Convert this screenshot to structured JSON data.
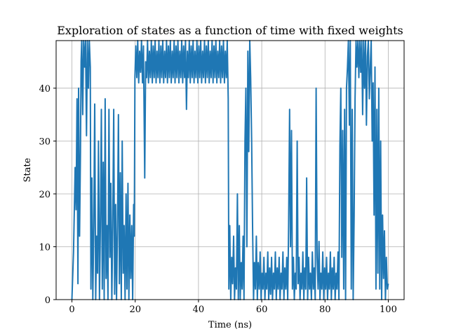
{
  "chart_data": {
    "type": "line",
    "title": "Exploration of states as a function of time with fixed weights",
    "xlabel": "Time (ns)",
    "ylabel": "State",
    "xlim": [
      -5,
      105
    ],
    "ylim": [
      0,
      49
    ],
    "xticks": [
      0,
      20,
      40,
      60,
      80,
      100
    ],
    "yticks": [
      0,
      10,
      20,
      30,
      40
    ],
    "grid": true,
    "series_color": "#1f77b4",
    "series": [
      {
        "values": [
          [
            0.0,
            0
          ],
          [
            0.5,
            9
          ],
          [
            1.0,
            25
          ],
          [
            1.3,
            17
          ],
          [
            1.6,
            38
          ],
          [
            1.9,
            3
          ],
          [
            2.1,
            40
          ],
          [
            2.4,
            12
          ],
          [
            2.7,
            28
          ],
          [
            2.9,
            45
          ],
          [
            3.1,
            49
          ],
          [
            3.4,
            35
          ],
          [
            3.7,
            49
          ],
          [
            4.0,
            44
          ],
          [
            4.3,
            49
          ],
          [
            4.6,
            31
          ],
          [
            4.9,
            49
          ],
          [
            5.2,
            40
          ],
          [
            5.5,
            49
          ],
          [
            5.8,
            44
          ],
          [
            6.0,
            2
          ],
          [
            6.3,
            23
          ],
          [
            6.6,
            0
          ],
          [
            6.9,
            14
          ],
          [
            7.2,
            37
          ],
          [
            7.5,
            0
          ],
          [
            7.8,
            12
          ],
          [
            8.1,
            5
          ],
          [
            8.4,
            30
          ],
          [
            8.7,
            0
          ],
          [
            9.0,
            14
          ],
          [
            9.3,
            36
          ],
          [
            9.6,
            2
          ],
          [
            9.9,
            26
          ],
          [
            10.2,
            0
          ],
          [
            10.5,
            38
          ],
          [
            10.8,
            4
          ],
          [
            11.1,
            14
          ],
          [
            11.4,
            0
          ],
          [
            11.7,
            36
          ],
          [
            12.0,
            8
          ],
          [
            12.3,
            22
          ],
          [
            12.6,
            0
          ],
          [
            12.9,
            14
          ],
          [
            13.2,
            36
          ],
          [
            13.5,
            1
          ],
          [
            13.8,
            18
          ],
          [
            14.1,
            0
          ],
          [
            14.4,
            14
          ],
          [
            14.7,
            35
          ],
          [
            15.0,
            3
          ],
          [
            15.3,
            24
          ],
          [
            15.6,
            0
          ],
          [
            15.9,
            30
          ],
          [
            16.2,
            5
          ],
          [
            16.5,
            14
          ],
          [
            16.8,
            0
          ],
          [
            17.1,
            20
          ],
          [
            17.4,
            2
          ],
          [
            17.7,
            22
          ],
          [
            18.0,
            0
          ],
          [
            18.3,
            16
          ],
          [
            18.6,
            4
          ],
          [
            18.9,
            14
          ],
          [
            19.2,
            0
          ],
          [
            19.5,
            18
          ],
          [
            19.7,
            12
          ],
          [
            19.9,
            42
          ],
          [
            20.2,
            48
          ],
          [
            20.5,
            42
          ],
          [
            20.8,
            49
          ],
          [
            21.1,
            41
          ],
          [
            21.4,
            47
          ],
          [
            21.7,
            43
          ],
          [
            22.0,
            49
          ],
          [
            22.3,
            41
          ],
          [
            22.6,
            48
          ],
          [
            23.0,
            23
          ],
          [
            23.3,
            45
          ],
          [
            23.6,
            42
          ],
          [
            23.9,
            49
          ],
          [
            24.2,
            41
          ],
          [
            24.5,
            47
          ],
          [
            24.8,
            42
          ],
          [
            25.1,
            49
          ],
          [
            25.4,
            41
          ],
          [
            25.7,
            48
          ],
          [
            26.0,
            42
          ],
          [
            26.3,
            49
          ],
          [
            26.6,
            41
          ],
          [
            26.9,
            47
          ],
          [
            27.2,
            42
          ],
          [
            27.5,
            49
          ],
          [
            27.8,
            41
          ],
          [
            28.1,
            48
          ],
          [
            28.4,
            42
          ],
          [
            28.7,
            49
          ],
          [
            29.0,
            41
          ],
          [
            29.3,
            47
          ],
          [
            29.6,
            42
          ],
          [
            29.9,
            49
          ],
          [
            30.2,
            41
          ],
          [
            30.5,
            48
          ],
          [
            30.8,
            42
          ],
          [
            31.1,
            49
          ],
          [
            31.4,
            41
          ],
          [
            31.7,
            47
          ],
          [
            32.0,
            42
          ],
          [
            32.3,
            49
          ],
          [
            32.6,
            41
          ],
          [
            32.9,
            48
          ],
          [
            33.2,
            42
          ],
          [
            33.5,
            49
          ],
          [
            33.8,
            41
          ],
          [
            34.1,
            47
          ],
          [
            34.4,
            42
          ],
          [
            34.7,
            49
          ],
          [
            35.0,
            41
          ],
          [
            35.3,
            48
          ],
          [
            35.6,
            42
          ],
          [
            35.9,
            49
          ],
          [
            36.2,
            36
          ],
          [
            36.5,
            47
          ],
          [
            36.8,
            42
          ],
          [
            37.1,
            49
          ],
          [
            37.4,
            41
          ],
          [
            37.7,
            48
          ],
          [
            38.0,
            42
          ],
          [
            38.3,
            49
          ],
          [
            38.6,
            41
          ],
          [
            38.9,
            47
          ],
          [
            39.2,
            42
          ],
          [
            39.5,
            49
          ],
          [
            39.8,
            41
          ],
          [
            40.1,
            48
          ],
          [
            40.4,
            42
          ],
          [
            40.7,
            49
          ],
          [
            41.0,
            41
          ],
          [
            41.3,
            47
          ],
          [
            41.6,
            42
          ],
          [
            41.9,
            49
          ],
          [
            42.2,
            41
          ],
          [
            42.5,
            48
          ],
          [
            42.8,
            42
          ],
          [
            43.1,
            49
          ],
          [
            43.4,
            41
          ],
          [
            43.7,
            47
          ],
          [
            44.0,
            42
          ],
          [
            44.3,
            49
          ],
          [
            44.6,
            41
          ],
          [
            44.9,
            48
          ],
          [
            45.2,
            42
          ],
          [
            45.5,
            49
          ],
          [
            45.8,
            41
          ],
          [
            46.1,
            47
          ],
          [
            46.4,
            42
          ],
          [
            46.7,
            49
          ],
          [
            47.0,
            41
          ],
          [
            47.3,
            48
          ],
          [
            47.6,
            42
          ],
          [
            47.9,
            49
          ],
          [
            48.2,
            41
          ],
          [
            48.5,
            47
          ],
          [
            48.8,
            42
          ],
          [
            49.1,
            49
          ],
          [
            49.4,
            38
          ],
          [
            49.6,
            2
          ],
          [
            49.9,
            14
          ],
          [
            50.2,
            0
          ],
          [
            50.5,
            8
          ],
          [
            50.8,
            3
          ],
          [
            51.1,
            12
          ],
          [
            51.4,
            0
          ],
          [
            51.7,
            6
          ],
          [
            52.0,
            2
          ],
          [
            52.3,
            20
          ],
          [
            52.6,
            0
          ],
          [
            52.9,
            14
          ],
          [
            53.2,
            0
          ],
          [
            53.5,
            7
          ],
          [
            53.8,
            2
          ],
          [
            54.1,
            12
          ],
          [
            54.4,
            0
          ],
          [
            54.7,
            30
          ],
          [
            55.0,
            40
          ],
          [
            55.3,
            10
          ],
          [
            55.6,
            47
          ],
          [
            55.9,
            28
          ],
          [
            56.2,
            49
          ],
          [
            56.5,
            42
          ],
          [
            56.8,
            30
          ],
          [
            57.1,
            14
          ],
          [
            57.4,
            0
          ],
          [
            57.7,
            7
          ],
          [
            58.0,
            2
          ],
          [
            58.3,
            12
          ],
          [
            58.6,
            0
          ],
          [
            58.9,
            7
          ],
          [
            59.2,
            2
          ],
          [
            59.5,
            9
          ],
          [
            59.8,
            0
          ],
          [
            60.1,
            5
          ],
          [
            60.4,
            2
          ],
          [
            60.7,
            8
          ],
          [
            61.0,
            0
          ],
          [
            61.3,
            5
          ],
          [
            61.6,
            2
          ],
          [
            61.9,
            9
          ],
          [
            62.2,
            0
          ],
          [
            62.5,
            6
          ],
          [
            62.8,
            1
          ],
          [
            63.1,
            8
          ],
          [
            63.4,
            0
          ],
          [
            63.7,
            5
          ],
          [
            64.0,
            2
          ],
          [
            64.3,
            9
          ],
          [
            64.6,
            0
          ],
          [
            64.9,
            6
          ],
          [
            65.2,
            2
          ],
          [
            65.5,
            8
          ],
          [
            65.8,
            0
          ],
          [
            66.1,
            5
          ],
          [
            66.4,
            2
          ],
          [
            66.7,
            9
          ],
          [
            67.0,
            0
          ],
          [
            67.3,
            6
          ],
          [
            67.6,
            2
          ],
          [
            67.9,
            8
          ],
          [
            68.2,
            0
          ],
          [
            68.5,
            14
          ],
          [
            68.8,
            36
          ],
          [
            69.1,
            10
          ],
          [
            69.4,
            32
          ],
          [
            69.7,
            2
          ],
          [
            70.0,
            8
          ],
          [
            70.3,
            0
          ],
          [
            70.6,
            5
          ],
          [
            70.9,
            2
          ],
          [
            71.2,
            30
          ],
          [
            71.5,
            3
          ],
          [
            71.8,
            8
          ],
          [
            72.1,
            0
          ],
          [
            72.4,
            5
          ],
          [
            72.7,
            2
          ],
          [
            73.0,
            9
          ],
          [
            73.3,
            0
          ],
          [
            73.6,
            6
          ],
          [
            73.9,
            2
          ],
          [
            74.2,
            23
          ],
          [
            74.5,
            0
          ],
          [
            74.8,
            8
          ],
          [
            75.1,
            2
          ],
          [
            75.4,
            5
          ],
          [
            75.7,
            0
          ],
          [
            76.0,
            9
          ],
          [
            76.3,
            2
          ],
          [
            76.6,
            6
          ],
          [
            76.9,
            0
          ],
          [
            77.2,
            40
          ],
          [
            77.5,
            8
          ],
          [
            77.8,
            2
          ],
          [
            78.1,
            11
          ],
          [
            78.4,
            0
          ],
          [
            78.7,
            5
          ],
          [
            79.0,
            2
          ],
          [
            79.3,
            9
          ],
          [
            79.6,
            0
          ],
          [
            79.9,
            6
          ],
          [
            80.2,
            2
          ],
          [
            80.5,
            8
          ],
          [
            80.8,
            0
          ],
          [
            81.1,
            5
          ],
          [
            81.4,
            2
          ],
          [
            81.7,
            9
          ],
          [
            82.0,
            0
          ],
          [
            82.3,
            6
          ],
          [
            82.6,
            2
          ],
          [
            82.9,
            8
          ],
          [
            83.2,
            0
          ],
          [
            83.5,
            5
          ],
          [
            83.8,
            2
          ],
          [
            84.1,
            9
          ],
          [
            84.4,
            0
          ],
          [
            84.7,
            29
          ],
          [
            85.0,
            40
          ],
          [
            85.3,
            8
          ],
          [
            85.6,
            32
          ],
          [
            85.9,
            2
          ],
          [
            86.2,
            36
          ],
          [
            86.5,
            0
          ],
          [
            86.8,
            40
          ],
          [
            87.1,
            44
          ],
          [
            87.4,
            49
          ],
          [
            87.7,
            33
          ],
          [
            88.0,
            49
          ],
          [
            88.3,
            2
          ],
          [
            88.6,
            36
          ],
          [
            88.9,
            0
          ],
          [
            89.2,
            16
          ],
          [
            89.5,
            38
          ],
          [
            89.8,
            49
          ],
          [
            90.1,
            44
          ],
          [
            90.4,
            49
          ],
          [
            90.7,
            42
          ],
          [
            91.0,
            49
          ],
          [
            91.3,
            43
          ],
          [
            91.6,
            49
          ],
          [
            91.9,
            35
          ],
          [
            92.2,
            49
          ],
          [
            92.5,
            40
          ],
          [
            92.8,
            49
          ],
          [
            93.1,
            33
          ],
          [
            93.4,
            46
          ],
          [
            93.7,
            49
          ],
          [
            94.0,
            38
          ],
          [
            94.3,
            44
          ],
          [
            94.6,
            49
          ],
          [
            94.9,
            30
          ],
          [
            95.2,
            41
          ],
          [
            95.5,
            16
          ],
          [
            95.8,
            44
          ],
          [
            96.1,
            2
          ],
          [
            96.4,
            36
          ],
          [
            96.7,
            5
          ],
          [
            97.0,
            40
          ],
          [
            97.3,
            2
          ],
          [
            97.6,
            30
          ],
          [
            97.9,
            0
          ],
          [
            98.2,
            16
          ],
          [
            98.5,
            4
          ],
          [
            98.8,
            13
          ],
          [
            99.1,
            0
          ],
          [
            99.4,
            8
          ],
          [
            99.7,
            2
          ],
          [
            100.0,
            3
          ]
        ]
      }
    ]
  }
}
